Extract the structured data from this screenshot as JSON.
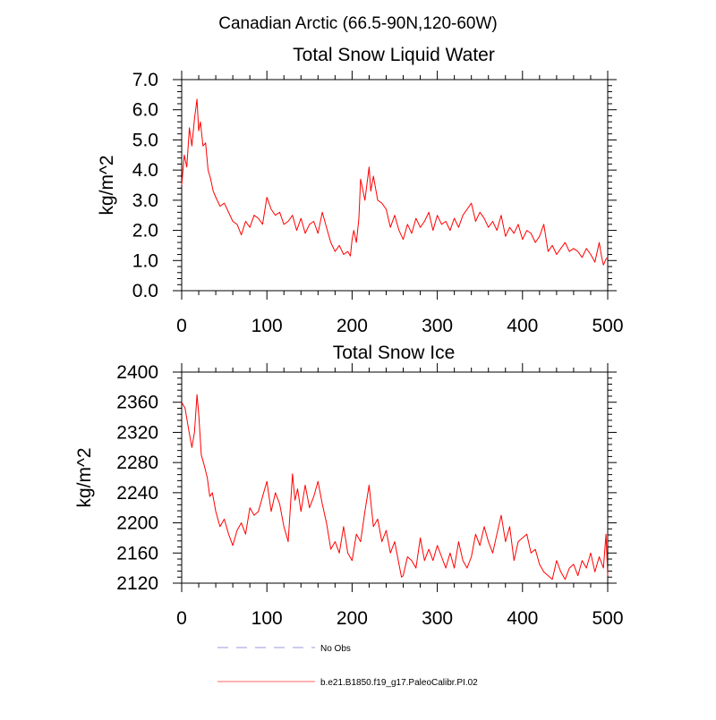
{
  "figure": {
    "title": "Canadian Arctic (66.5-90N,120-60W)"
  },
  "colors": {
    "series_line": "#ff0000",
    "legend_obs": "#9999dd",
    "legend_model": "#ff6666",
    "axis": "#000000"
  },
  "legend": [
    {
      "label": "No Obs",
      "style": "dashed",
      "color": "#9999dd"
    },
    {
      "label": "b.e21.B1850.f19_g17.PaleoCalibr.PI.02",
      "style": "solid",
      "color": "#ff6666"
    }
  ],
  "chart_data": [
    {
      "type": "line",
      "title": "Total Snow Liquid Water",
      "xlabel": "",
      "ylabel": "kg/m^2",
      "xlim": [
        0,
        500
      ],
      "ylim": [
        0.0,
        7.0
      ],
      "xticks": [
        0,
        100,
        200,
        300,
        400,
        500
      ],
      "xtick_labels": [
        "0",
        "100",
        "200",
        "300",
        "400",
        "500"
      ],
      "yticks": [
        0.0,
        1.0,
        2.0,
        3.0,
        4.0,
        5.0,
        6.0,
        7.0
      ],
      "ytick_labels": [
        "0.0",
        "1.0",
        "2.0",
        "3.0",
        "4.0",
        "5.0",
        "6.0",
        "7.0"
      ],
      "series": [
        {
          "name": "b.e21.B1850.f19_g17.PaleoCalibr.PI.02",
          "x": [
            0,
            3,
            6,
            9,
            12,
            15,
            18,
            20,
            22,
            25,
            28,
            31,
            34,
            37,
            40,
            45,
            50,
            55,
            60,
            65,
            70,
            75,
            80,
            85,
            90,
            95,
            100,
            105,
            110,
            115,
            120,
            125,
            130,
            135,
            140,
            145,
            150,
            155,
            160,
            165,
            170,
            175,
            180,
            185,
            190,
            195,
            198,
            200,
            202,
            205,
            208,
            210,
            215,
            220,
            222,
            225,
            230,
            235,
            240,
            245,
            250,
            255,
            260,
            265,
            270,
            275,
            280,
            285,
            290,
            295,
            300,
            305,
            310,
            315,
            320,
            325,
            330,
            335,
            340,
            345,
            350,
            355,
            360,
            365,
            370,
            375,
            380,
            385,
            390,
            395,
            400,
            405,
            410,
            415,
            420,
            425,
            430,
            435,
            440,
            445,
            450,
            455,
            460,
            465,
            470,
            475,
            480,
            485,
            490,
            493,
            495,
            498,
            500
          ],
          "values": [
            3.5,
            4.5,
            4.1,
            5.4,
            4.8,
            5.7,
            6.35,
            5.3,
            5.6,
            4.8,
            4.9,
            4.0,
            3.7,
            3.3,
            3.1,
            2.8,
            2.9,
            2.6,
            2.3,
            2.2,
            1.85,
            2.3,
            2.1,
            2.5,
            2.4,
            2.2,
            3.1,
            2.7,
            2.5,
            2.6,
            2.2,
            2.3,
            2.5,
            2.0,
            2.4,
            1.9,
            2.2,
            2.3,
            1.9,
            2.6,
            2.1,
            1.6,
            1.3,
            1.5,
            1.2,
            1.3,
            1.15,
            1.7,
            2.0,
            1.6,
            2.4,
            3.7,
            3.0,
            4.1,
            3.3,
            3.8,
            3.0,
            2.9,
            2.7,
            2.1,
            2.5,
            2.0,
            1.7,
            2.2,
            1.9,
            2.4,
            2.1,
            2.3,
            2.6,
            2.0,
            2.5,
            2.2,
            2.3,
            2.0,
            2.4,
            2.1,
            2.5,
            2.7,
            2.9,
            2.3,
            2.6,
            2.4,
            2.1,
            2.3,
            2.0,
            2.5,
            1.8,
            2.1,
            1.9,
            2.2,
            1.7,
            2.0,
            1.9,
            1.6,
            1.8,
            2.2,
            1.3,
            1.5,
            1.2,
            1.4,
            1.6,
            1.3,
            1.4,
            1.3,
            1.1,
            1.4,
            1.2,
            0.95,
            1.6,
            1.1,
            0.85,
            1.05,
            1.1
          ]
        }
      ]
    },
    {
      "type": "line",
      "title": "Total Snow Ice",
      "xlabel": "",
      "ylabel": "kg/m^2",
      "xlim": [
        0,
        500
      ],
      "ylim": [
        2120,
        2400
      ],
      "xticks": [
        0,
        100,
        200,
        300,
        400,
        500
      ],
      "xtick_labels": [
        "0",
        "100",
        "200",
        "300",
        "400",
        "500"
      ],
      "yticks": [
        2120,
        2160,
        2200,
        2240,
        2280,
        2320,
        2360,
        2400
      ],
      "ytick_labels": [
        "2120",
        "2160",
        "2200",
        "2240",
        "2280",
        "2320",
        "2360",
        "2400"
      ],
      "series": [
        {
          "name": "b.e21.B1850.f19_g17.PaleoCalibr.PI.02",
          "x": [
            0,
            4,
            8,
            12,
            15,
            18,
            20,
            23,
            26,
            30,
            33,
            36,
            40,
            45,
            50,
            55,
            60,
            65,
            70,
            75,
            80,
            85,
            90,
            95,
            100,
            105,
            110,
            115,
            120,
            125,
            130,
            133,
            136,
            140,
            145,
            150,
            155,
            160,
            165,
            170,
            175,
            180,
            185,
            190,
            195,
            200,
            205,
            210,
            215,
            220,
            225,
            230,
            235,
            240,
            245,
            250,
            255,
            258,
            260,
            265,
            270,
            275,
            280,
            285,
            290,
            295,
            300,
            305,
            310,
            315,
            320,
            325,
            330,
            335,
            340,
            345,
            350,
            355,
            360,
            365,
            370,
            375,
            380,
            385,
            390,
            395,
            400,
            405,
            410,
            415,
            420,
            425,
            430,
            435,
            440,
            445,
            450,
            455,
            460,
            465,
            470,
            475,
            480,
            485,
            490,
            495,
            498,
            500
          ],
          "values": [
            2360,
            2352,
            2325,
            2300,
            2320,
            2370,
            2345,
            2290,
            2278,
            2260,
            2235,
            2240,
            2215,
            2195,
            2205,
            2185,
            2170,
            2190,
            2200,
            2185,
            2220,
            2210,
            2215,
            2235,
            2255,
            2215,
            2240,
            2225,
            2195,
            2175,
            2265,
            2230,
            2245,
            2215,
            2250,
            2220,
            2235,
            2255,
            2225,
            2200,
            2165,
            2175,
            2160,
            2195,
            2160,
            2150,
            2185,
            2175,
            2215,
            2250,
            2195,
            2205,
            2175,
            2190,
            2160,
            2175,
            2145,
            2128,
            2130,
            2155,
            2150,
            2140,
            2180,
            2150,
            2165,
            2150,
            2170,
            2155,
            2140,
            2160,
            2140,
            2175,
            2150,
            2140,
            2155,
            2185,
            2170,
            2195,
            2175,
            2160,
            2185,
            2210,
            2175,
            2195,
            2150,
            2175,
            2180,
            2185,
            2160,
            2165,
            2145,
            2135,
            2130,
            2125,
            2150,
            2135,
            2125,
            2140,
            2145,
            2130,
            2150,
            2140,
            2160,
            2135,
            2155,
            2140,
            2185,
            2130
          ]
        }
      ]
    }
  ]
}
